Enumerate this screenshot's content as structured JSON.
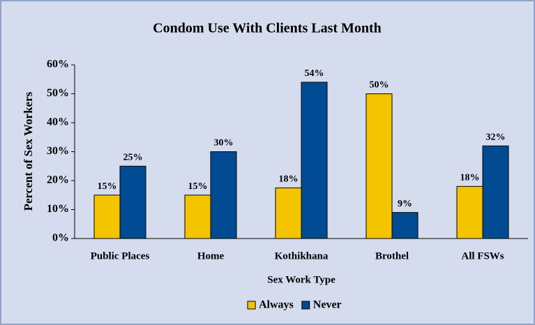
{
  "chart_data": {
    "type": "bar",
    "title": "Condom Use With Clients Last Month",
    "x_label": "Sex Work Type",
    "y_label": "Percent of Sex Workers",
    "categories": [
      "Public Places",
      "Home",
      "Kothikhana",
      "Brothel",
      "All FSWs"
    ],
    "series": [
      {
        "name": "Always",
        "color": "#f5c400",
        "values": [
          15,
          15,
          17.5,
          50,
          18
        ],
        "value_labels": [
          "15%",
          "15%",
          "18%",
          "50%",
          "18%"
        ]
      },
      {
        "name": "Never",
        "color": "#004b93",
        "values": [
          25,
          30,
          54,
          9,
          32
        ],
        "value_labels": [
          "25%",
          "30%",
          "54%",
          "9%",
          "32%"
        ]
      }
    ],
    "ylim": [
      0,
      60
    ],
    "yticks": [
      {
        "value": 0,
        "label": "0%"
      },
      {
        "value": 10,
        "label": "10%"
      },
      {
        "value": 20,
        "label": "20%"
      },
      {
        "value": 30,
        "label": "30%"
      },
      {
        "value": 40,
        "label": "40%"
      },
      {
        "value": 50,
        "label": "50%"
      },
      {
        "value": 60,
        "label": "60%"
      }
    ],
    "legend": "bottom"
  }
}
